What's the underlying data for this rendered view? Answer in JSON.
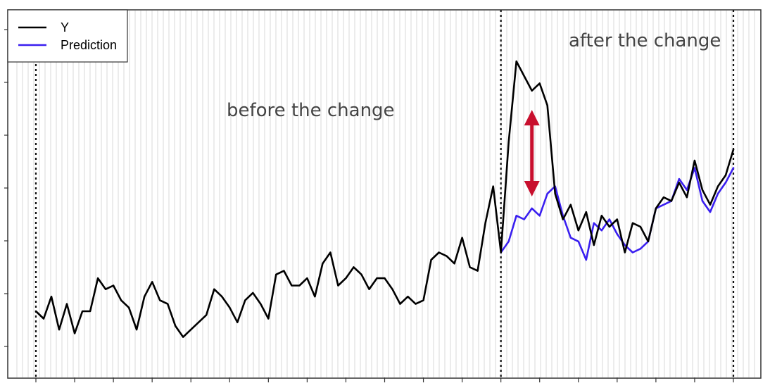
{
  "chart_data": {
    "type": "line",
    "title": "",
    "xlabel": "",
    "ylabel": "",
    "grid": "vertical stripes",
    "legend_position": "top-left",
    "ylim": [
      0,
      100
    ],
    "xlim": [
      0,
      200
    ],
    "change_point_x": 120,
    "end_x": 180,
    "start_x": 0,
    "annotations": {
      "before": "before the change",
      "after": "after the change"
    },
    "gap_marker": {
      "x": 128,
      "y_top": 72,
      "y_bottom": 50
    },
    "series": [
      {
        "name": "Y",
        "color": "#000000",
        "x": [
          0,
          2,
          4,
          6,
          8,
          10,
          12,
          14,
          16,
          18,
          20,
          22,
          24,
          26,
          28,
          30,
          32,
          34,
          36,
          38,
          40,
          42,
          44,
          46,
          48,
          50,
          52,
          54,
          56,
          58,
          60,
          62,
          64,
          66,
          68,
          70,
          72,
          74,
          76,
          78,
          80,
          82,
          84,
          86,
          88,
          90,
          92,
          94,
          96,
          98,
          100,
          102,
          104,
          106,
          108,
          110,
          112,
          114,
          116,
          118,
          120,
          122,
          124,
          126,
          128,
          130,
          132,
          134,
          136,
          138,
          140,
          142,
          144,
          146,
          148,
          150,
          152,
          154,
          156,
          158,
          160,
          162,
          164,
          166,
          168,
          170,
          172,
          174,
          176,
          178,
          180
        ],
        "values": [
          18,
          16,
          22,
          13,
          20,
          12,
          18,
          18,
          27,
          24,
          25,
          21,
          19,
          13,
          22,
          26,
          21,
          20,
          14,
          11,
          13,
          15,
          17,
          24,
          22,
          19,
          15,
          21,
          23,
          20,
          16,
          28,
          29,
          25,
          25,
          27,
          22,
          31,
          34,
          25,
          27,
          30,
          28,
          24,
          27,
          27,
          24,
          20,
          22,
          20,
          21,
          32,
          34,
          33,
          31,
          38,
          30,
          29,
          42,
          52,
          34,
          64,
          86,
          82,
          78,
          80,
          74,
          50,
          43,
          47,
          40,
          45,
          36,
          44,
          41,
          43,
          34,
          42,
          41,
          37,
          46,
          49,
          48,
          53,
          49,
          59,
          51,
          47,
          52,
          55,
          62
        ]
      },
      {
        "name": "Prediction",
        "color": "#3a1ff0",
        "x": [
          120,
          122,
          124,
          126,
          128,
          130,
          132,
          134,
          136,
          138,
          140,
          142,
          144,
          146,
          148,
          150,
          152,
          154,
          156,
          158,
          160,
          162,
          164,
          166,
          168,
          170,
          172,
          174,
          176,
          178,
          180
        ],
        "values": [
          34,
          37,
          44,
          43,
          46,
          44,
          50,
          52,
          44,
          38,
          37,
          32,
          42,
          40,
          43,
          39,
          36,
          34,
          35,
          37,
          46,
          47,
          48,
          54,
          51,
          57,
          48,
          45,
          50,
          53,
          57
        ]
      }
    ]
  }
}
